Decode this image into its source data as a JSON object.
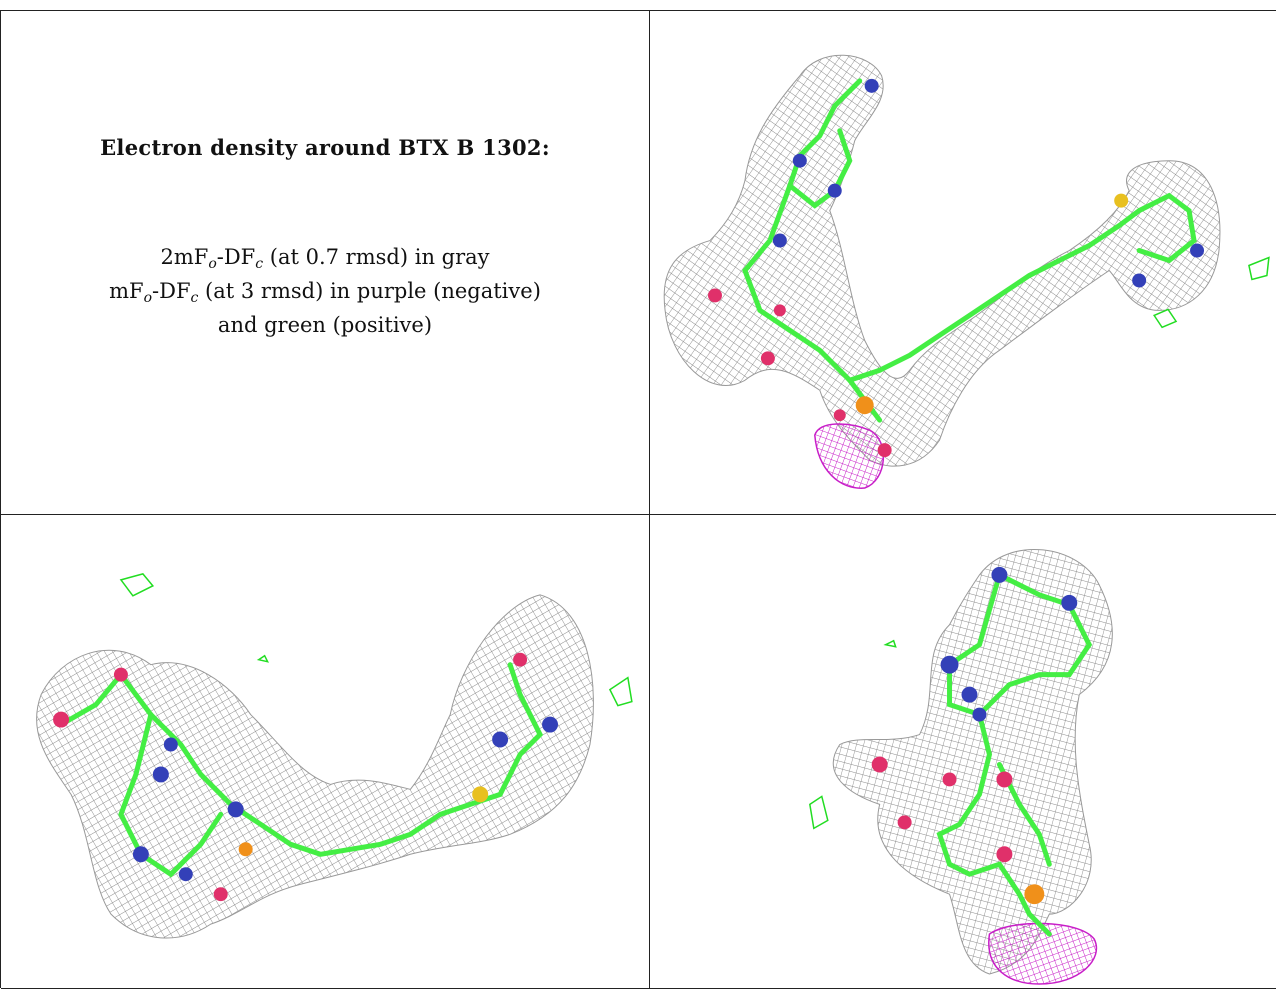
{
  "caption": {
    "title": "Electron density around BTX B 1302:",
    "line1_pre": "2mF",
    "line1_sub1": "o",
    "line1_mid": "-DF",
    "line1_sub2": "c",
    "line1_post": " (at 0.7 rmsd) in gray",
    "line2_pre": "mF",
    "line2_sub1": "o",
    "line2_mid": "-DF",
    "line2_sub2": "c",
    "line2_post": " (at 3 rmsd) in purple (negative)",
    "line3": "and green (positive)"
  },
  "colors": {
    "mesh_gray": "#8a8a8a",
    "negative_purple": "#c81ec8",
    "positive_green": "#22dd22",
    "carbon": "#44ee44",
    "nitrogen": "#3340b8",
    "oxygen": "#e0306a",
    "phosphorus": "#f0901a",
    "sulfur": "#e8c020"
  },
  "panels": [
    {
      "name": "view-top-right"
    },
    {
      "name": "view-bottom-left"
    },
    {
      "name": "view-bottom-right"
    }
  ]
}
